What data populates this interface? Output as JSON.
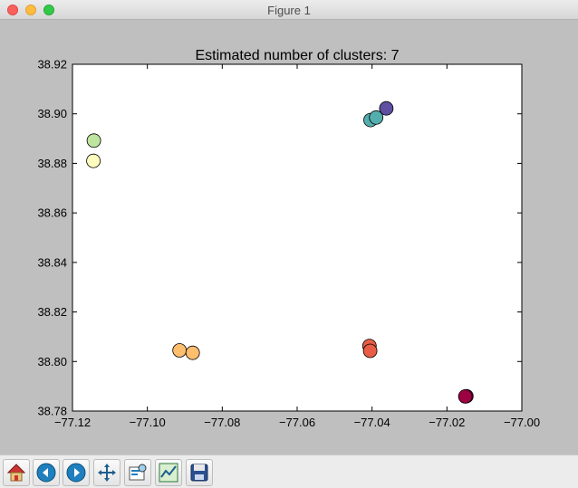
{
  "window": {
    "title": "Figure 1"
  },
  "chart_data": {
    "type": "scatter",
    "title": "Estimated number of clusters: 7",
    "xlabel": "",
    "ylabel": "",
    "xlim": [
      -77.12,
      -77.0
    ],
    "ylim": [
      38.78,
      38.92
    ],
    "xticks": [
      "−77.12",
      "−77.10",
      "−77.08",
      "−77.06",
      "−77.04",
      "−77.02",
      "−77.00"
    ],
    "yticks": [
      "38.78",
      "38.80",
      "38.82",
      "38.84",
      "38.86",
      "38.88",
      "38.90",
      "38.92"
    ],
    "grid": false,
    "series": [
      {
        "color": "#9e0142",
        "points": [
          [
            -77.0148,
            38.786
          ],
          [
            -77.0151,
            38.7859
          ]
        ]
      },
      {
        "color": "#e95d47",
        "points": [
          [
            -77.0407,
            38.8063
          ],
          [
            -77.0405,
            38.8043
          ]
        ]
      },
      {
        "color": "#fdbe6e",
        "points": [
          [
            -77.0914,
            38.8045
          ],
          [
            -77.0879,
            38.8035
          ]
        ]
      },
      {
        "color": "#fefebe",
        "points": [
          [
            -77.1144,
            38.881
          ]
        ]
      },
      {
        "color": "#bee5a0",
        "points": [
          [
            -77.1143,
            38.8892
          ]
        ]
      },
      {
        "color": "#54aead",
        "points": [
          [
            -77.0404,
            38.8975
          ],
          [
            -77.0389,
            38.8985
          ]
        ]
      },
      {
        "color": "#5e4fa2",
        "points": [
          [
            -77.0362,
            38.9022
          ]
        ]
      }
    ]
  },
  "toolbar": {
    "buttons": [
      {
        "name": "home-icon"
      },
      {
        "name": "back-icon"
      },
      {
        "name": "forward-icon"
      },
      {
        "name": "pan-icon"
      },
      {
        "name": "zoom-icon"
      },
      {
        "name": "configure-subplots-icon"
      },
      {
        "name": "save-icon"
      }
    ]
  }
}
